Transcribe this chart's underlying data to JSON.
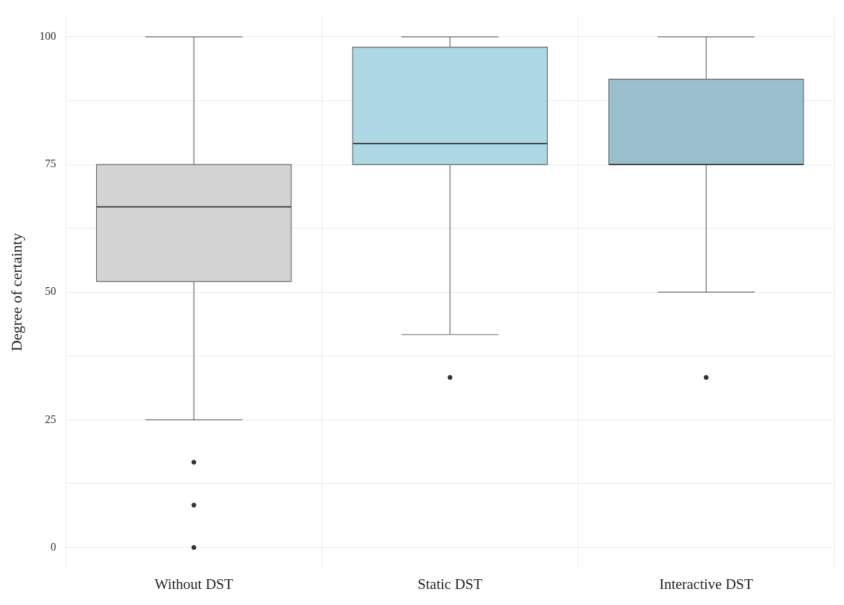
{
  "chart_data": {
    "type": "box",
    "ylabel": "Degree of certainty",
    "categories": [
      "Without DST",
      "Static DST",
      "Interactive DST"
    ],
    "colors": [
      "#d3d3d3",
      "#add8e6",
      "#9abfcf"
    ],
    "boxes": [
      {
        "low": 25,
        "q1": 52.1,
        "median": 66.7,
        "q3": 75,
        "high": 100,
        "outliers": [
          16.7,
          8.3,
          0
        ]
      },
      {
        "low": 41.7,
        "q1": 75,
        "median": 79.1,
        "q3": 98,
        "high": 100,
        "outliers": [
          33.3
        ]
      },
      {
        "low": 50,
        "q1": 75,
        "median": 75,
        "q3": 91.7,
        "high": 100,
        "outliers": [
          33.3
        ]
      }
    ],
    "ylim": [
      -4,
      104
    ],
    "yticks": [
      0,
      {
        "value": 12.5,
        "label": null
      },
      25,
      {
        "value": 37.5,
        "label": null
      },
      50,
      {
        "value": 62.5,
        "label": null
      },
      75,
      {
        "value": 87.5,
        "label": null
      },
      100
    ],
    "grid": true,
    "legend": false
  }
}
